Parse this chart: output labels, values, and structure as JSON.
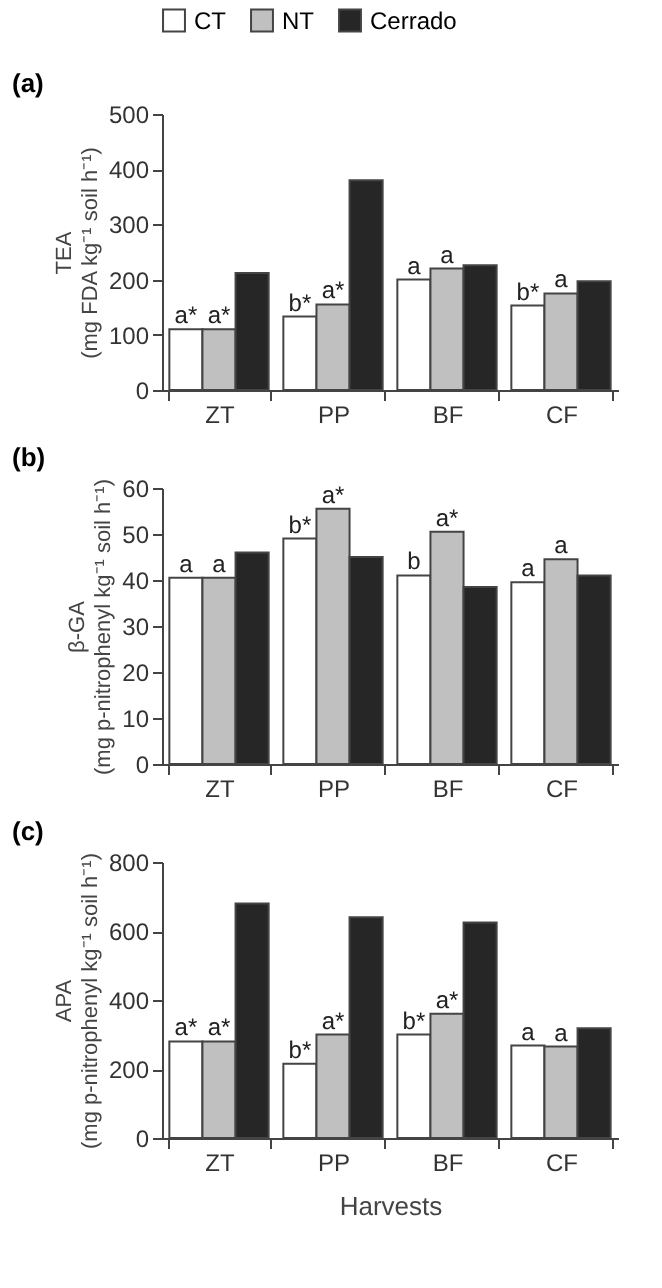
{
  "chart_data": [
    {
      "type": "bar",
      "title": "(a)",
      "ylabel": "TEA\n(mg FDA kg⁻¹ soil h⁻¹)",
      "categories": [
        "ZT",
        "PP",
        "BF",
        "CF"
      ],
      "series": [
        {
          "name": "CT",
          "color": "#ffffff",
          "values": [
            110,
            133,
            200,
            153
          ],
          "value_labels": [
            "a*",
            "b*",
            "a",
            "b*"
          ]
        },
        {
          "name": "NT",
          "color": "#c0c0c0",
          "values": [
            110,
            155,
            220,
            175
          ],
          "value_labels": [
            "a*",
            "a*",
            "a",
            "a"
          ]
        },
        {
          "name": "Cerrado",
          "color": "#262626",
          "values": [
            212,
            380,
            226,
            197
          ]
        }
      ],
      "ylim": [
        0,
        500
      ],
      "yticks": [
        0,
        100,
        200,
        300,
        400,
        500
      ],
      "grid": false,
      "legend": "top"
    },
    {
      "type": "bar",
      "title": "(b)",
      "ylabel": "β-GA\n(mg p-nitrophenyl kg⁻¹ soil h⁻¹)",
      "categories": [
        "ZT",
        "PP",
        "BF",
        "CF"
      ],
      "series": [
        {
          "name": "CT",
          "color": "#ffffff",
          "values": [
            40.5,
            49,
            41,
            39.5
          ],
          "value_labels": [
            "a",
            "b*",
            "b",
            "a"
          ]
        },
        {
          "name": "NT",
          "color": "#c0c0c0",
          "values": [
            40.5,
            55.5,
            50.5,
            44.5
          ],
          "value_labels": [
            "a",
            "a*",
            "a*",
            "a"
          ]
        },
        {
          "name": "Cerrado",
          "color": "#262626",
          "values": [
            46,
            45,
            38.5,
            41
          ]
        }
      ],
      "ylim": [
        0,
        60
      ],
      "yticks": [
        0,
        10,
        20,
        30,
        40,
        50,
        60
      ],
      "grid": false,
      "legend": false
    },
    {
      "type": "bar",
      "title": "(c)",
      "ylabel": "APA\n(mg p-nitrophenyl kg⁻¹ soil h⁻¹)",
      "xlabel": "Harvests",
      "categories": [
        "ZT",
        "PP",
        "BF",
        "CF"
      ],
      "series": [
        {
          "name": "CT",
          "color": "#ffffff",
          "values": [
            280,
            215,
            300,
            268
          ],
          "value_labels": [
            "a*",
            "b*",
            "b*",
            "a"
          ]
        },
        {
          "name": "NT",
          "color": "#c0c0c0",
          "values": [
            280,
            300,
            360,
            265
          ],
          "value_labels": [
            "a*",
            "a*",
            "a*",
            "a"
          ]
        },
        {
          "name": "Cerrado",
          "color": "#262626",
          "values": [
            680,
            640,
            625,
            318
          ]
        }
      ],
      "ylim": [
        0,
        800
      ],
      "yticks": [
        0,
        200,
        400,
        600,
        800
      ],
      "grid": false,
      "legend": false
    }
  ]
}
